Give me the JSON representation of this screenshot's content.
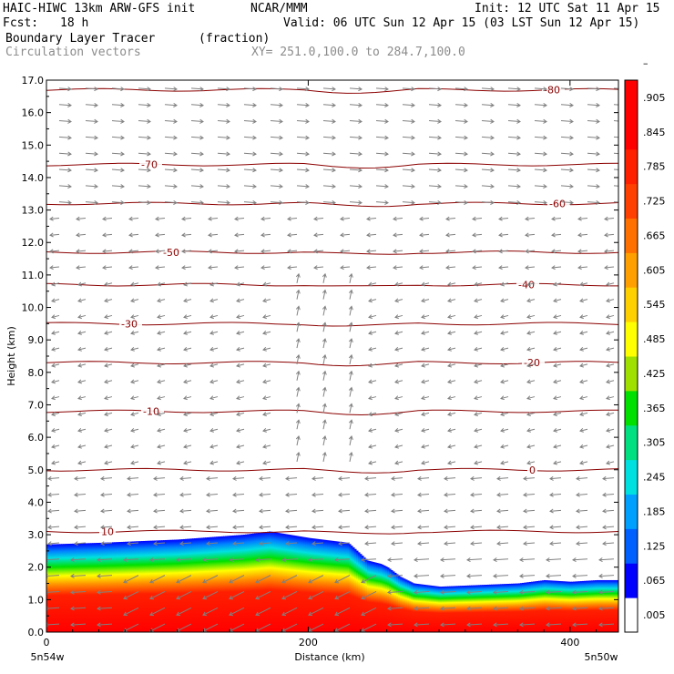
{
  "header": {
    "model": "HAIC-HIWC 13km ARW-GFS init",
    "org": "NCAR/MMM",
    "init": "Init: 12 UTC Sat 11 Apr 15",
    "fcst_label": "Fcst:",
    "fcst_value": "18 h",
    "valid": "Valid: 06 UTC Sun 12 Apr 15 (03 LST Sun 12 Apr 15)",
    "field": "Boundary Layer Tracer",
    "units": "(fraction)",
    "vectors": "Circulation vectors",
    "xy": "XY= 251.0,100.0 to 284.7,100.0"
  },
  "colors": {
    "contour": "#8b0000",
    "vector": "#808080",
    "colorbar": [
      "#ffffff",
      "#0000ff",
      "#0060ff",
      "#00a0ff",
      "#00e0e0",
      "#00e080",
      "#00e000",
      "#a0e000",
      "#ffff00",
      "#ffd000",
      "#ffa000",
      "#ff7000",
      "#ff4000",
      "#ff2000",
      "#ff0000",
      "#ff0000"
    ]
  },
  "chart_data": {
    "type": "heatmap",
    "xlabel": "Distance (km)",
    "ylabel": "Height (km)",
    "xlim": [
      0,
      437
    ],
    "ylim": [
      0.0,
      17.0
    ],
    "x_ticks": [
      0,
      200,
      400
    ],
    "y_ticks": [
      "0.0",
      "1.0",
      "2.0",
      "3.0",
      "4.0",
      "5.0",
      "6.0",
      "7.0",
      "8.0",
      "9.0",
      "10.0",
      "11.0",
      "12.0",
      "13.0",
      "14.0",
      "15.0",
      "16.0",
      "17.0"
    ],
    "x_end_labels": [
      "5n54w",
      "5n50w"
    ],
    "colorbar_ticks": [
      ".005",
      ".065",
      ".125",
      ".185",
      ".245",
      ".305",
      ".365",
      ".425",
      ".485",
      ".545",
      ".605",
      ".665",
      ".725",
      ".785",
      ".845",
      ".905",
      "–"
    ],
    "tracer_top": {
      "x": [
        0,
        40,
        100,
        150,
        170,
        200,
        230,
        245,
        255,
        260,
        270,
        280,
        300,
        330,
        360,
        380,
        400,
        420,
        437
      ],
      "height": [
        2.7,
        2.75,
        2.85,
        3.0,
        3.1,
        2.9,
        2.75,
        2.2,
        2.1,
        2.0,
        1.7,
        1.5,
        1.4,
        1.45,
        1.5,
        1.6,
        1.55,
        1.6,
        1.6
      ]
    },
    "temperature_contours": [
      {
        "label": "10",
        "height": 3.1
      },
      {
        "label": "0",
        "height": 5.0
      },
      {
        "label": "-10",
        "height": 6.8
      },
      {
        "label": "-20",
        "height": 8.3
      },
      {
        "label": "-30",
        "height": 9.5
      },
      {
        "label": "-40",
        "height": 10.7
      },
      {
        "label": "-50",
        "height": 11.7
      },
      {
        "label": "-60",
        "height": 13.2
      },
      {
        "label": "-70",
        "height": 14.4
      },
      {
        "label": "-80",
        "height": 16.7
      }
    ]
  }
}
